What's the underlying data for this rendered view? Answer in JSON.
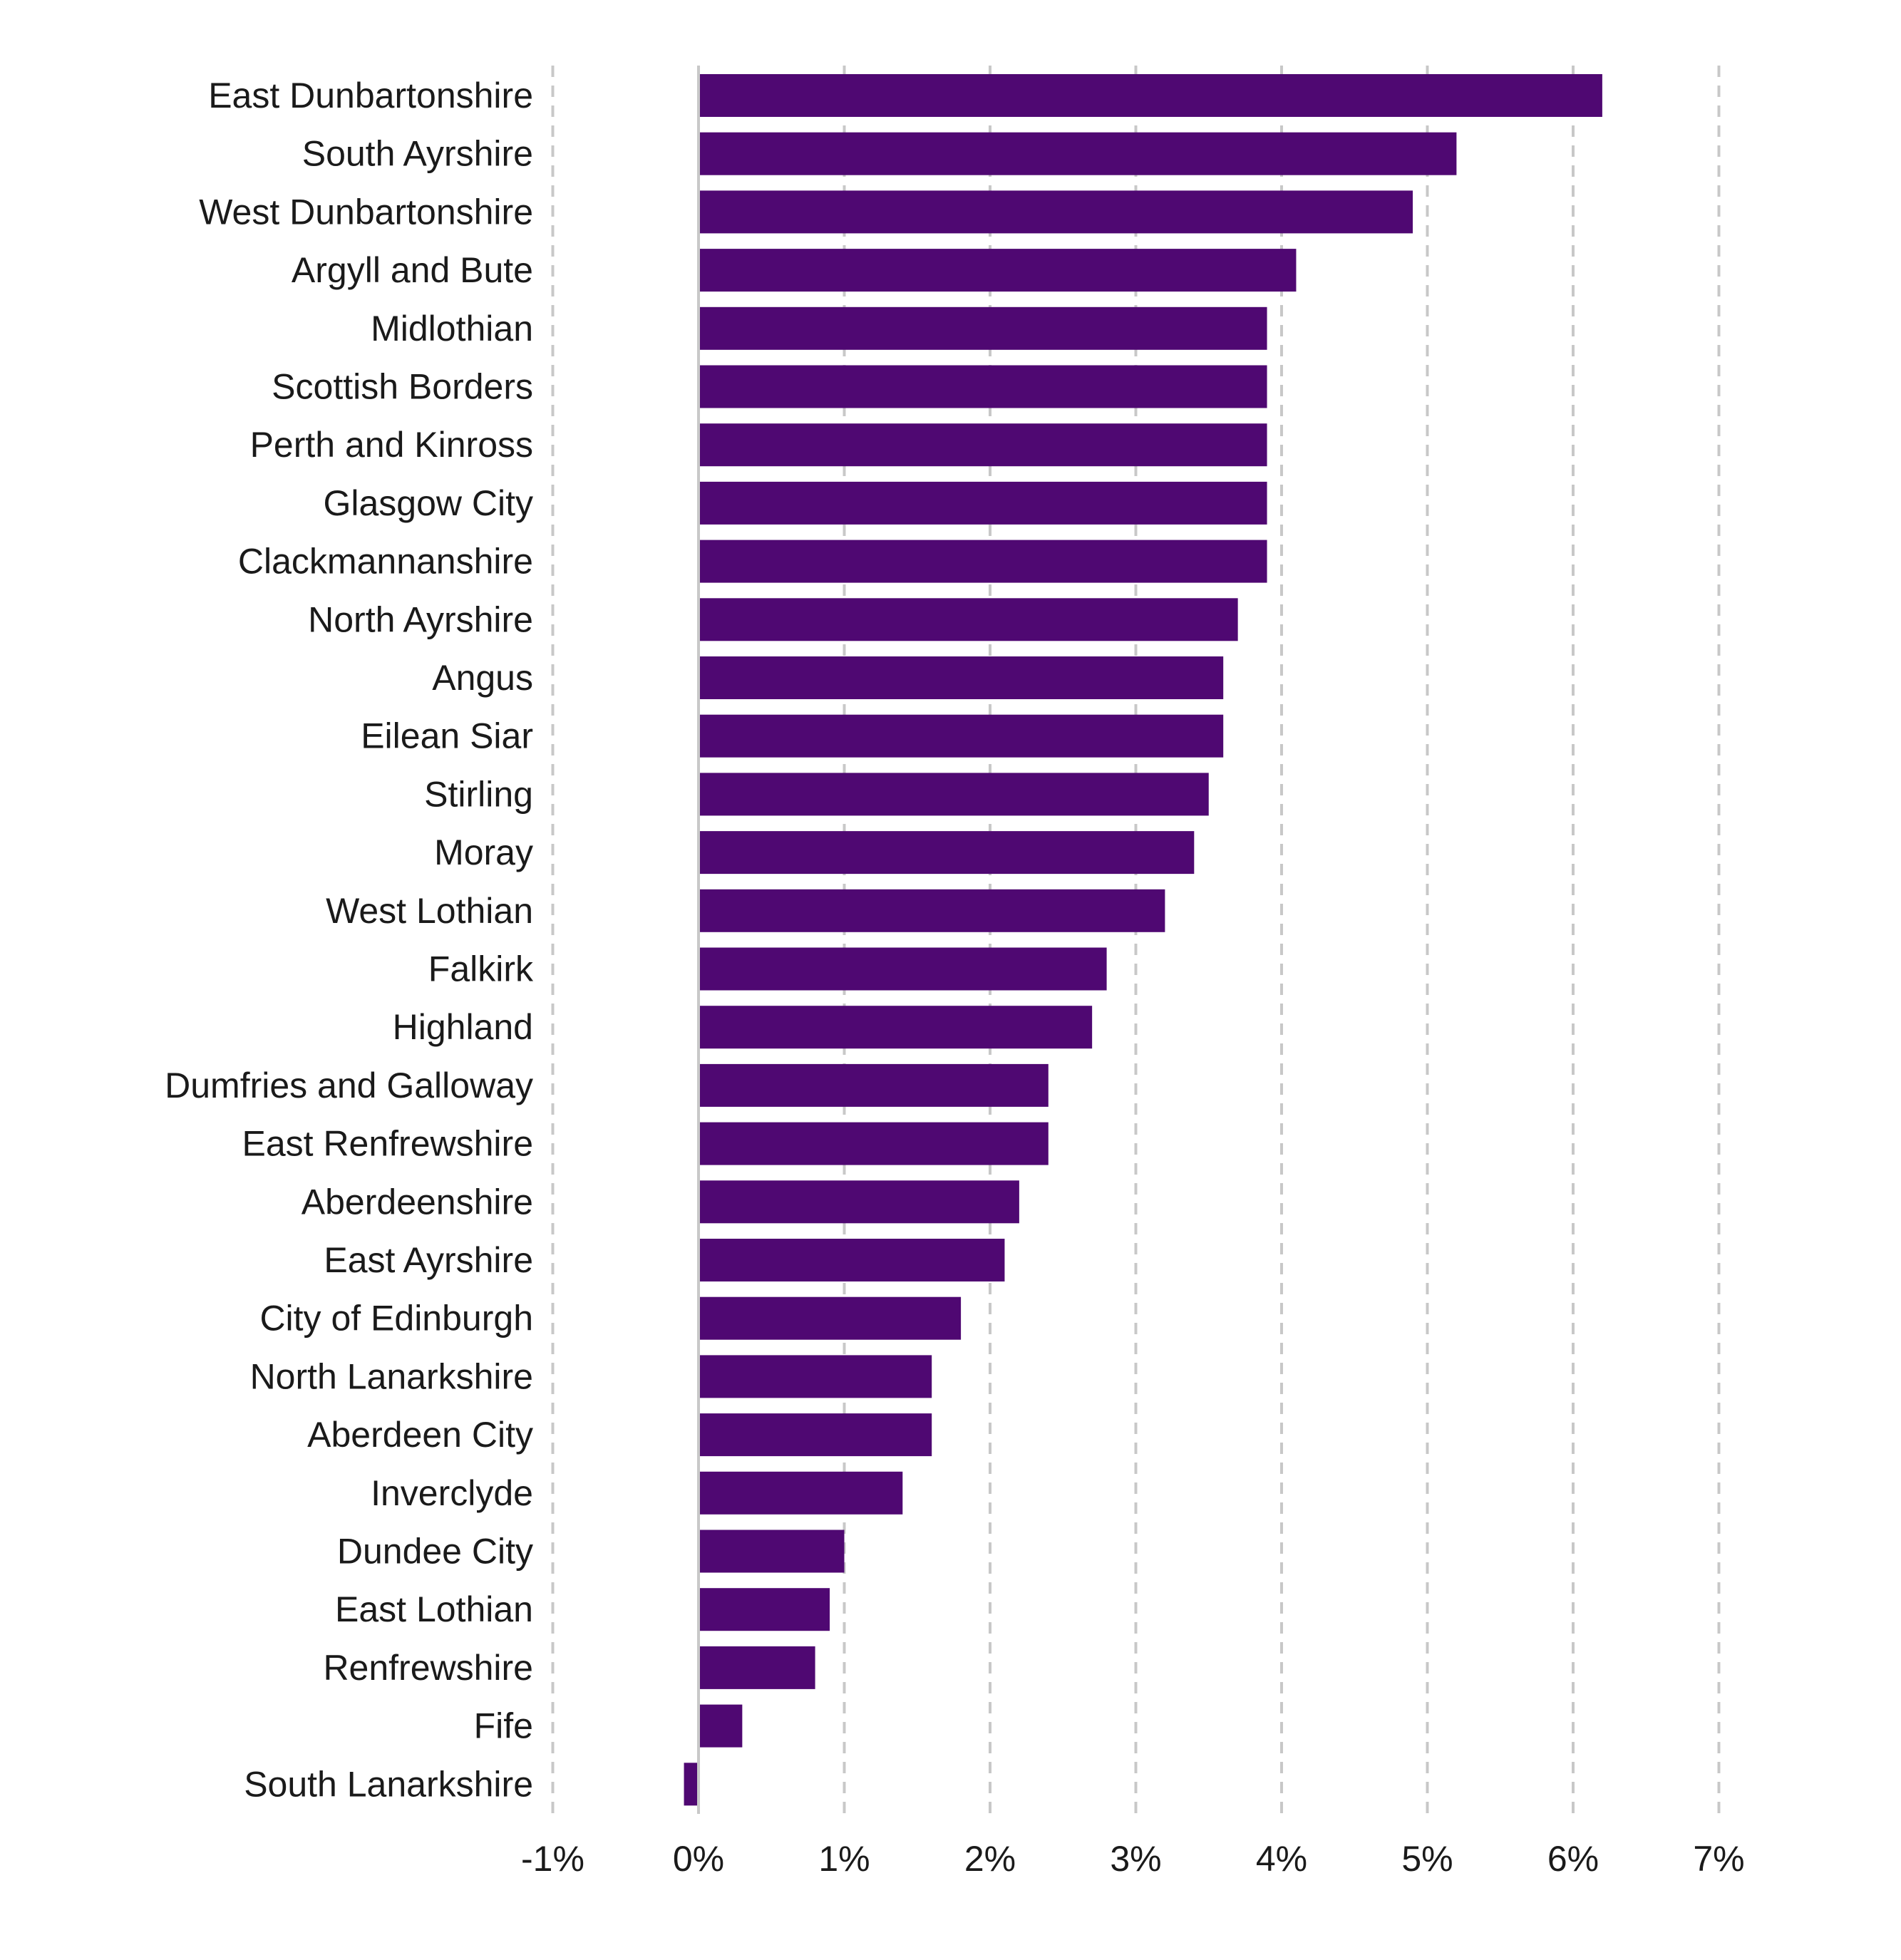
{
  "chart_data": {
    "type": "bar",
    "orientation": "horizontal",
    "title": "",
    "xlabel": "",
    "ylabel": "",
    "xlim": [
      -1,
      7
    ],
    "ticks": [
      -1,
      0,
      1,
      2,
      3,
      4,
      5,
      6,
      7
    ],
    "tick_labels": [
      "-1%",
      "0%",
      "1%",
      "2%",
      "3%",
      "4%",
      "5%",
      "6%",
      "7%"
    ],
    "grid": "vertical dashed",
    "legend": "none",
    "bar_color": "#4f0872",
    "categories": [
      "East Dunbartonshire",
      "South Ayrshire",
      "West Dunbartonshire",
      "Argyll and Bute",
      "Midlothian",
      "Scottish Borders",
      "Perth and Kinross",
      "Glasgow City",
      "Clackmannanshire",
      "North Ayrshire",
      "Angus",
      "Eilean Siar",
      "Stirling",
      "Moray",
      "West Lothian",
      "Falkirk",
      "Highland",
      "Dumfries and Galloway",
      "East Renfrewshire",
      "Aberdeenshire",
      "East Ayrshire",
      "City of Edinburgh",
      "North Lanarkshire",
      "Aberdeen City",
      "Inverclyde",
      "Dundee City",
      "East Lothian",
      "Renfrewshire",
      "Fife",
      "South Lanarkshire"
    ],
    "values": [
      6.2,
      5.2,
      4.9,
      4.1,
      3.9,
      3.9,
      3.9,
      3.9,
      3.9,
      3.7,
      3.6,
      3.6,
      3.5,
      3.4,
      3.2,
      2.8,
      2.7,
      2.4,
      2.4,
      2.2,
      2.1,
      1.8,
      1.6,
      1.6,
      1.4,
      1.0,
      0.9,
      0.8,
      0.3,
      -0.1
    ]
  }
}
